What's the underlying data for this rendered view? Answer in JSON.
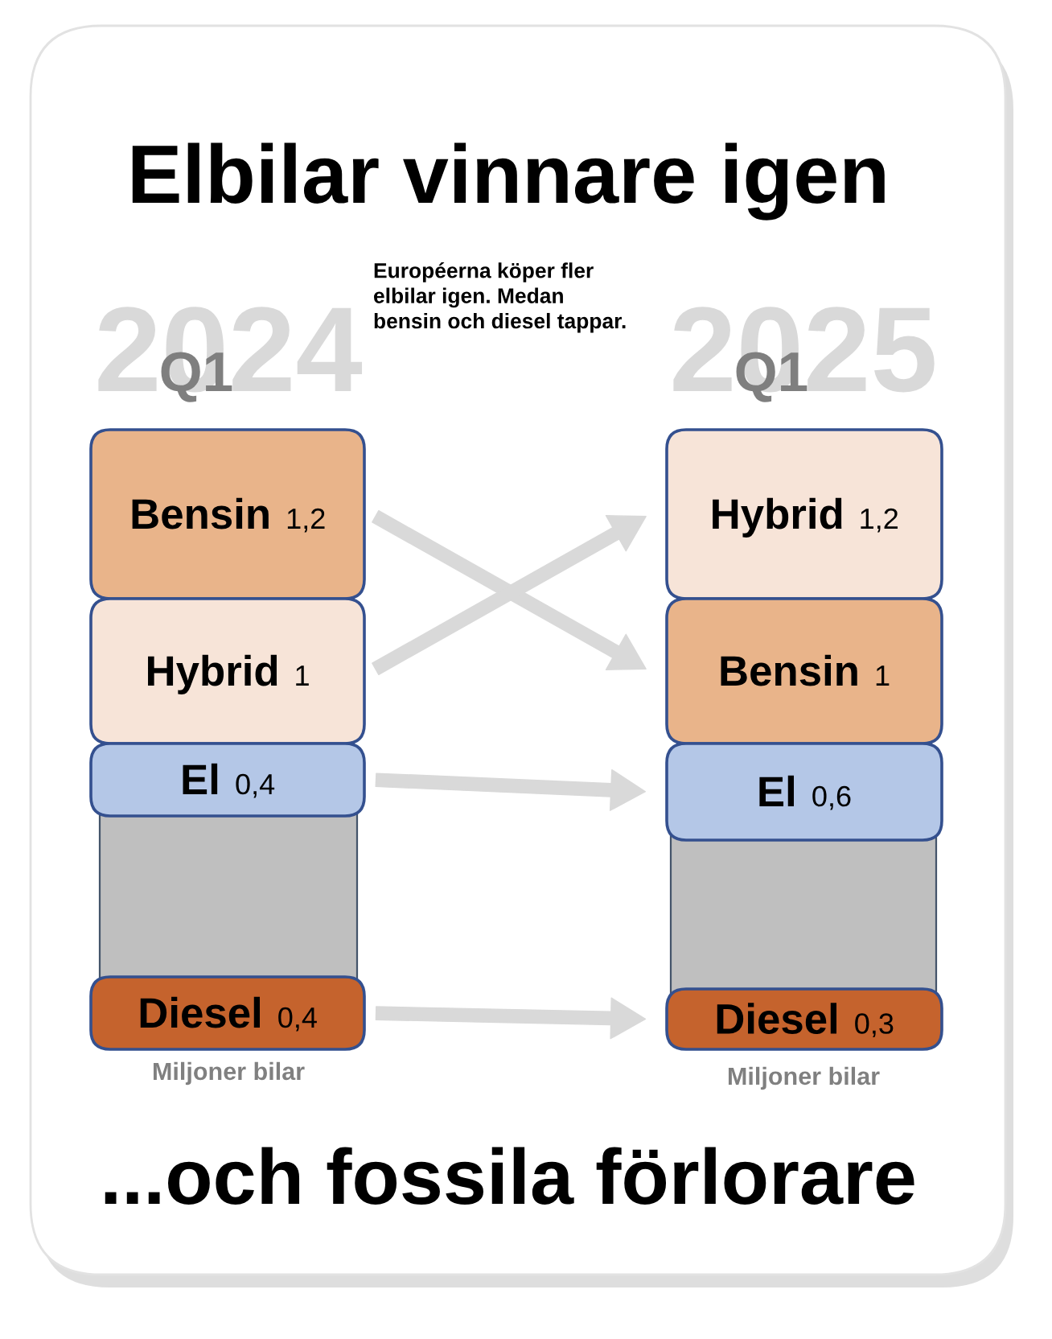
{
  "chart_data": [
    {
      "type": "other",
      "title": "Elbilar vinnare igen",
      "subtitle": "Européerna köper fler\nelbilar igen. Medan\nbensin och diesel tappar.",
      "annotations": [
        "2024",
        "Q1"
      ],
      "categories": [
        "Bensin",
        "Hybrid",
        "El",
        "Diesel"
      ],
      "values": [
        1.2,
        1,
        0.4,
        0.4
      ],
      "value_labels": [
        "1,2",
        "1",
        "0,4",
        "0,4"
      ],
      "colors": [
        "#e9b48a",
        "#f7e4d8",
        "#b4c7e7",
        "#c5632d"
      ],
      "xlabel": "Miljoner bilar"
    },
    {
      "type": "other",
      "annotations": [
        "2025",
        "Q1",
        "...och fossila förlorare"
      ],
      "categories": [
        "Hybrid",
        "Bensin",
        "El",
        "Diesel"
      ],
      "values": [
        1.2,
        1,
        0.6,
        0.3
      ],
      "value_labels": [
        "1,2",
        "1",
        "0,6",
        "0,3"
      ],
      "colors": [
        "#f7e4d8",
        "#e9b48a",
        "#b4c7e7",
        "#c5632d"
      ],
      "xlabel": "Miljoner bilar"
    }
  ]
}
